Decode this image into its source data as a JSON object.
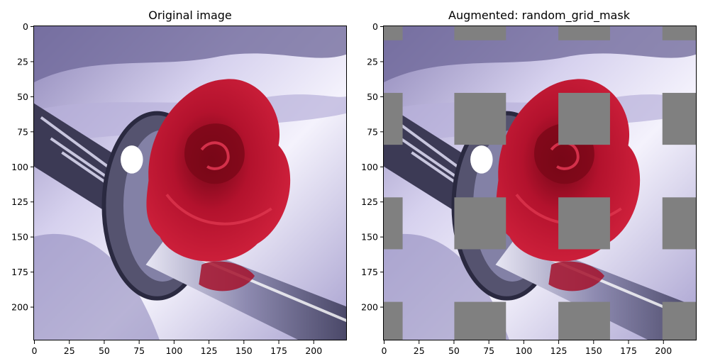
{
  "chart_data": [
    {
      "type": "image",
      "title": "Original image",
      "xlim": [
        0,
        224
      ],
      "ylim": [
        224,
        0
      ],
      "xticks": [
        0,
        25,
        50,
        75,
        100,
        125,
        150,
        175,
        200
      ],
      "yticks": [
        0,
        25,
        50,
        75,
        100,
        125,
        150,
        175,
        200
      ],
      "image_content": "katana-and-red-rose-photo",
      "mask_rects": []
    },
    {
      "type": "image",
      "title": "Augmented: random_grid_mask",
      "xlim": [
        0,
        224
      ],
      "ylim": [
        224,
        0
      ],
      "xticks": [
        0,
        25,
        50,
        75,
        100,
        125,
        150,
        175,
        200
      ],
      "yticks": [
        0,
        25,
        50,
        75,
        100,
        125,
        150,
        175,
        200
      ],
      "image_content": "katana-and-red-rose-photo",
      "mask_color": "#808080",
      "mask_rects": [
        {
          "x0": 0,
          "x1": 13.5,
          "y0": 0,
          "y1": 10
        },
        {
          "x0": 50.5,
          "x1": 87.5,
          "y0": 0,
          "y1": 10
        },
        {
          "x0": 125,
          "x1": 162,
          "y0": 0,
          "y1": 10
        },
        {
          "x0": 199.5,
          "x1": 224,
          "y0": 0,
          "y1": 10
        },
        {
          "x0": 0,
          "x1": 13.5,
          "y0": 47.5,
          "y1": 84.5
        },
        {
          "x0": 50.5,
          "x1": 87.5,
          "y0": 47.5,
          "y1": 84.5
        },
        {
          "x0": 125,
          "x1": 162,
          "y0": 47.5,
          "y1": 84.5
        },
        {
          "x0": 199.5,
          "x1": 224,
          "y0": 47.5,
          "y1": 84.5
        },
        {
          "x0": 0,
          "x1": 13.5,
          "y0": 122,
          "y1": 159
        },
        {
          "x0": 50.5,
          "x1": 87.5,
          "y0": 122,
          "y1": 159
        },
        {
          "x0": 125,
          "x1": 162,
          "y0": 122,
          "y1": 159
        },
        {
          "x0": 199.5,
          "x1": 224,
          "y0": 122,
          "y1": 159
        },
        {
          "x0": 0,
          "x1": 13.5,
          "y0": 196.5,
          "y1": 224
        },
        {
          "x0": 50.5,
          "x1": 87.5,
          "y0": 196.5,
          "y1": 224
        },
        {
          "x0": 125,
          "x1": 162,
          "y0": 196.5,
          "y1": 224
        },
        {
          "x0": 199.5,
          "x1": 224,
          "y0": 196.5,
          "y1": 224
        }
      ]
    }
  ],
  "colors": {
    "background": "#ffffff",
    "mask": "#808080",
    "rose": "#b0102a",
    "cloth": "#c9c3e4"
  }
}
